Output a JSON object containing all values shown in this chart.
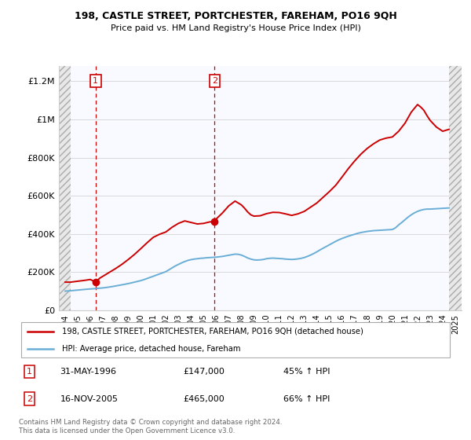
{
  "title": "198, CASTLE STREET, PORTCHESTER, FAREHAM, PO16 9QH",
  "subtitle": "Price paid vs. HM Land Registry's House Price Index (HPI)",
  "legend_line1": "198, CASTLE STREET, PORTCHESTER, FAREHAM, PO16 9QH (detached house)",
  "legend_line2": "HPI: Average price, detached house, Fareham",
  "footnote": "Contains HM Land Registry data © Crown copyright and database right 2024.\nThis data is licensed under the Open Government Licence v3.0.",
  "point1_date": "31-MAY-1996",
  "point1_price": "£147,000",
  "point1_hpi": "45% ↑ HPI",
  "point1_x": 1996.42,
  "point1_y": 147000,
  "point2_date": "16-NOV-2005",
  "point2_price": "£465,000",
  "point2_hpi": "66% ↑ HPI",
  "point2_x": 2005.88,
  "point2_y": 465000,
  "vline1_x": 1996.42,
  "vline2_x": 2005.88,
  "red_color": "#cc0000",
  "blue_color": "#6aaed6",
  "xmin": 1993.5,
  "xmax": 2025.5,
  "ymin": 0,
  "ymax": 1280000,
  "yticks": [
    0,
    200000,
    400000,
    600000,
    800000,
    1000000,
    1200000
  ],
  "ytick_labels": [
    "£0",
    "£200K",
    "£400K",
    "£600K",
    "£800K",
    "£1M",
    "£1.2M"
  ],
  "xticks": [
    1994,
    1995,
    1996,
    1997,
    1998,
    1999,
    2000,
    2001,
    2002,
    2003,
    2004,
    2005,
    2006,
    2007,
    2008,
    2009,
    2010,
    2011,
    2012,
    2013,
    2014,
    2015,
    2016,
    2017,
    2018,
    2019,
    2020,
    2021,
    2022,
    2023,
    2024,
    2025
  ],
  "hatch_left_xmin": 1993.5,
  "hatch_left_xmax": 1994.42,
  "hatch_right_xmin": 2024.5,
  "hatch_right_xmax": 2025.5,
  "hpi_x": [
    1994.0,
    1994.25,
    1994.5,
    1994.75,
    1995.0,
    1995.25,
    1995.5,
    1995.75,
    1996.0,
    1996.25,
    1996.5,
    1996.75,
    1997.0,
    1997.25,
    1997.5,
    1997.75,
    1998.0,
    1998.25,
    1998.5,
    1998.75,
    1999.0,
    1999.25,
    1999.5,
    1999.75,
    2000.0,
    2000.25,
    2000.5,
    2000.75,
    2001.0,
    2001.25,
    2001.5,
    2001.75,
    2002.0,
    2002.25,
    2002.5,
    2002.75,
    2003.0,
    2003.25,
    2003.5,
    2003.75,
    2004.0,
    2004.25,
    2004.5,
    2004.75,
    2005.0,
    2005.25,
    2005.5,
    2005.75,
    2006.0,
    2006.25,
    2006.5,
    2006.75,
    2007.0,
    2007.25,
    2007.5,
    2007.75,
    2008.0,
    2008.25,
    2008.5,
    2008.75,
    2009.0,
    2009.25,
    2009.5,
    2009.75,
    2010.0,
    2010.25,
    2010.5,
    2010.75,
    2011.0,
    2011.25,
    2011.5,
    2011.75,
    2012.0,
    2012.25,
    2012.5,
    2012.75,
    2013.0,
    2013.25,
    2013.5,
    2013.75,
    2014.0,
    2014.25,
    2014.5,
    2014.75,
    2015.0,
    2015.25,
    2015.5,
    2015.75,
    2016.0,
    2016.25,
    2016.5,
    2016.75,
    2017.0,
    2017.25,
    2017.5,
    2017.75,
    2018.0,
    2018.25,
    2018.5,
    2018.75,
    2019.0,
    2019.25,
    2019.5,
    2019.75,
    2020.0,
    2020.25,
    2020.5,
    2020.75,
    2021.0,
    2021.25,
    2021.5,
    2021.75,
    2022.0,
    2022.25,
    2022.5,
    2022.75,
    2023.0,
    2023.25,
    2023.5,
    2023.75,
    2024.0,
    2024.25,
    2024.5
  ],
  "hpi_y": [
    100000,
    101000,
    102500,
    104000,
    105500,
    107000,
    108500,
    110000,
    111500,
    112500,
    114000,
    115500,
    117000,
    119000,
    121500,
    124000,
    127000,
    130000,
    133000,
    136000,
    139500,
    143000,
    147000,
    151000,
    155000,
    160000,
    166000,
    172000,
    178000,
    184000,
    190000,
    196000,
    202000,
    212000,
    222000,
    232000,
    240000,
    248000,
    255000,
    261000,
    265000,
    268000,
    270000,
    272000,
    273000,
    275000,
    276000,
    277000,
    278000,
    280000,
    282000,
    285000,
    288000,
    291000,
    294000,
    293000,
    289000,
    282000,
    274000,
    268000,
    264000,
    263000,
    264000,
    266000,
    270000,
    272000,
    273000,
    272000,
    271000,
    270000,
    268000,
    267000,
    266000,
    267000,
    269000,
    272000,
    276000,
    282000,
    289000,
    297000,
    306000,
    316000,
    325000,
    334000,
    343000,
    352000,
    361000,
    369000,
    376000,
    382000,
    388000,
    393000,
    398000,
    403000,
    407000,
    410000,
    413000,
    415000,
    417000,
    418000,
    419000,
    420000,
    421000,
    422000,
    423000,
    432000,
    447000,
    460000,
    474000,
    488000,
    500000,
    510000,
    518000,
    524000,
    528000,
    530000,
    530000,
    531000,
    532000,
    533000,
    534000,
    535000,
    536000
  ],
  "price_x": [
    1994.0,
    1994.42,
    1995.0,
    1995.5,
    1996.0,
    1996.42,
    1996.75,
    1997.0,
    1997.5,
    1998.0,
    1998.5,
    1999.0,
    1999.5,
    2000.0,
    2000.5,
    2001.0,
    2001.5,
    2002.0,
    2002.5,
    2003.0,
    2003.5,
    2004.0,
    2004.5,
    2005.0,
    2005.5,
    2005.88,
    2006.0,
    2006.5,
    2007.0,
    2007.5,
    2008.0,
    2008.25,
    2008.5,
    2008.75,
    2009.0,
    2009.5,
    2010.0,
    2010.5,
    2011.0,
    2011.5,
    2012.0,
    2012.5,
    2013.0,
    2013.5,
    2014.0,
    2014.5,
    2015.0,
    2015.5,
    2016.0,
    2016.5,
    2017.0,
    2017.5,
    2018.0,
    2018.5,
    2019.0,
    2019.5,
    2020.0,
    2020.5,
    2021.0,
    2021.5,
    2022.0,
    2022.25,
    2022.5,
    2022.75,
    2023.0,
    2023.5,
    2024.0,
    2024.5
  ],
  "price_y": [
    147000,
    147000,
    152000,
    156000,
    161000,
    147000,
    168000,
    178000,
    198000,
    218000,
    240000,
    265000,
    292000,
    322000,
    353000,
    382000,
    398000,
    410000,
    435000,
    455000,
    468000,
    460000,
    452000,
    455000,
    463000,
    465000,
    478000,
    510000,
    547000,
    572000,
    552000,
    535000,
    515000,
    500000,
    493000,
    495000,
    506000,
    513000,
    512000,
    505000,
    497000,
    505000,
    518000,
    540000,
    562000,
    592000,
    622000,
    655000,
    698000,
    742000,
    782000,
    818000,
    848000,
    872000,
    892000,
    902000,
    908000,
    938000,
    980000,
    1038000,
    1078000,
    1065000,
    1048000,
    1020000,
    995000,
    960000,
    938000,
    948000
  ]
}
